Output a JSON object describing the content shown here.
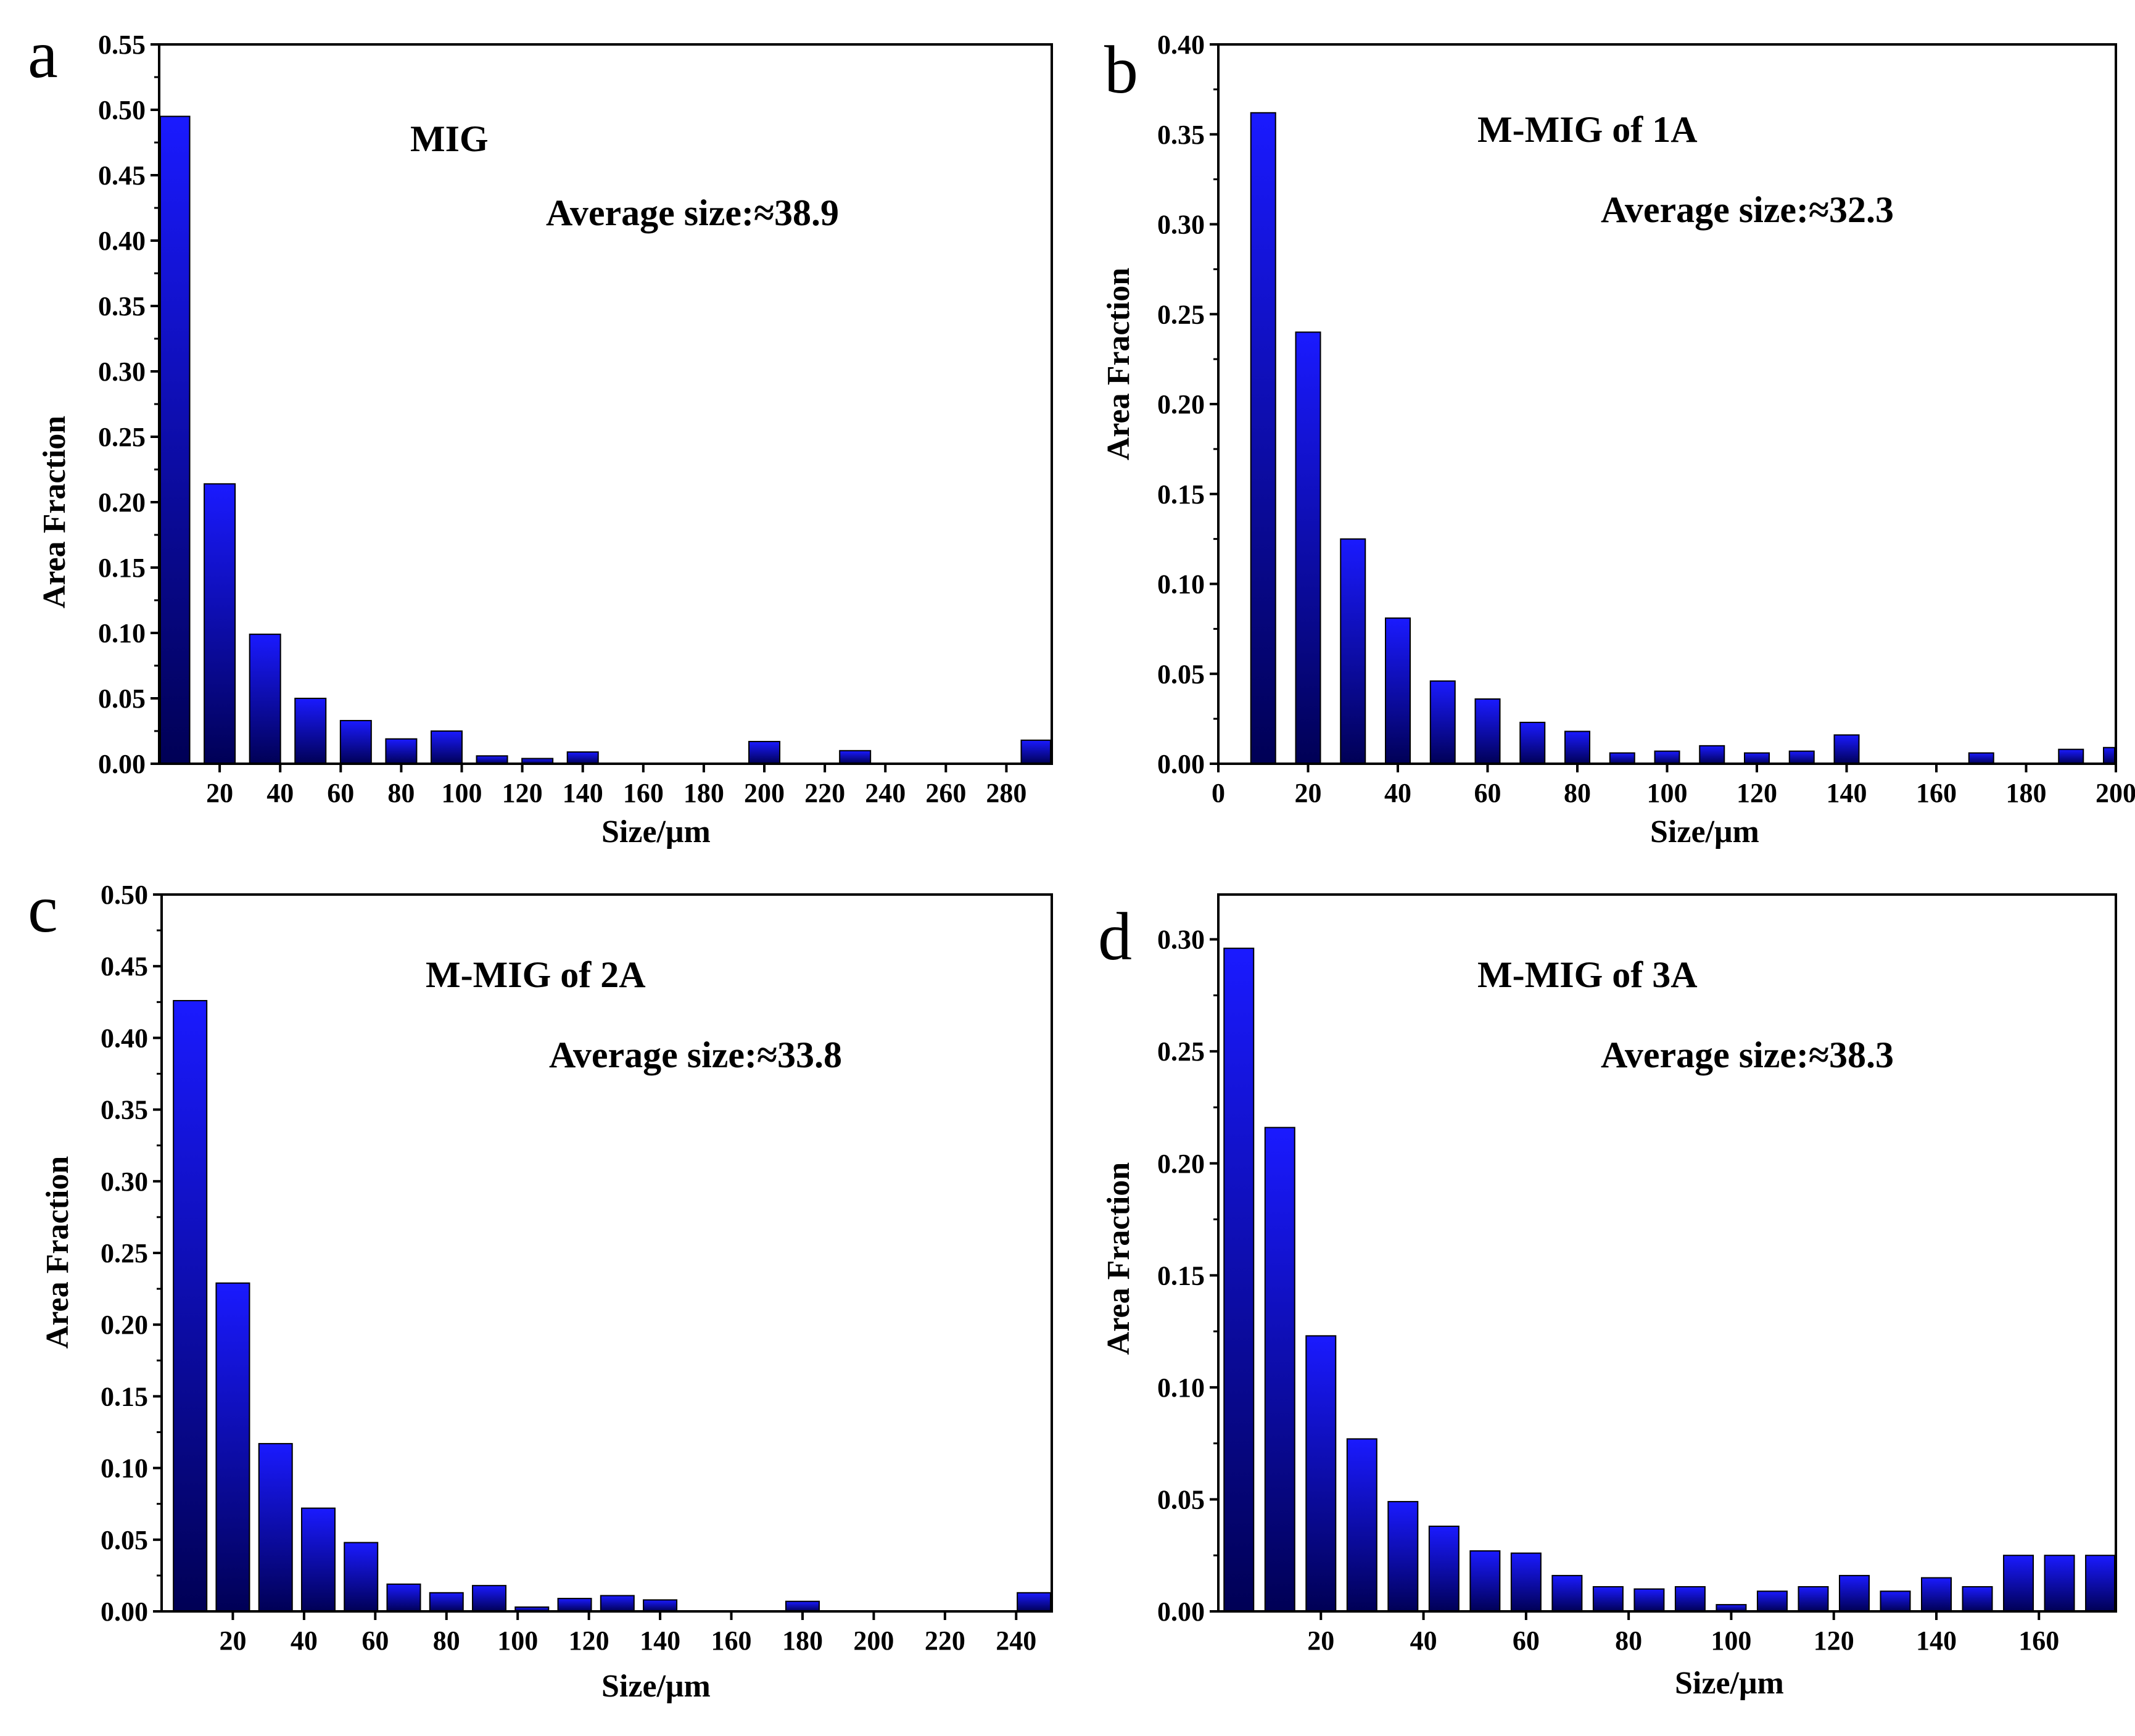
{
  "colors": {
    "bar_top": "#1a1aff",
    "bar_bottom": "#000055",
    "bar_outline": "#000000",
    "axis": "#000000"
  },
  "chart_data": [
    {
      "type": "bar",
      "panel": "a",
      "annotation": "MIG",
      "average": "Average size:≈38.9",
      "xlabel": "Size/μm",
      "ylabel": "Area Fraction",
      "xlim": [
        0,
        295
      ],
      "ylim": [
        0,
        0.55
      ],
      "xticks": [
        "20",
        "40",
        "60",
        "80",
        "100",
        "120",
        "140",
        "160",
        "180",
        "200",
        "220",
        "240",
        "260",
        "280"
      ],
      "yticks": [
        "0.00",
        "0.05",
        "0.10",
        "0.15",
        "0.20",
        "0.25",
        "0.30",
        "0.35",
        "0.40",
        "0.45",
        "0.50",
        "0.55"
      ],
      "x": [
        5,
        20,
        35,
        50,
        65,
        80,
        95,
        110,
        125,
        140,
        200,
        230,
        290
      ],
      "values": [
        0.495,
        0.214,
        0.099,
        0.05,
        0.033,
        0.019,
        0.025,
        0.006,
        0.004,
        0.009,
        0.017,
        0.01,
        0.018
      ]
    },
    {
      "type": "bar",
      "panel": "b",
      "annotation": "M-MIG of 1A",
      "average": "Average size:≈32.3",
      "xlabel": "Size/μm",
      "ylabel": "Area Fraction",
      "xlim": [
        0,
        200
      ],
      "ylim": [
        0,
        0.4
      ],
      "xticks": [
        "0",
        "20",
        "40",
        "60",
        "80",
        "100",
        "120",
        "140",
        "160",
        "180",
        "200"
      ],
      "yticks": [
        "0.00",
        "0.05",
        "0.10",
        "0.15",
        "0.20",
        "0.25",
        "0.30",
        "0.35",
        "0.40"
      ],
      "x": [
        10,
        20,
        30,
        40,
        50,
        60,
        70,
        80,
        90,
        100,
        110,
        120,
        130,
        140,
        170,
        190,
        200
      ],
      "values": [
        0.362,
        0.24,
        0.125,
        0.081,
        0.046,
        0.036,
        0.023,
        0.018,
        0.006,
        0.007,
        0.01,
        0.006,
        0.007,
        0.016,
        0.006,
        0.008,
        0.009
      ]
    },
    {
      "type": "bar",
      "panel": "c",
      "annotation": "M-MIG of 2A",
      "average": "Average size:≈33.8",
      "xlabel": "Size/μm",
      "ylabel": "Area Fraction",
      "xlim": [
        0,
        250
      ],
      "ylim": [
        0,
        0.5
      ],
      "xticks": [
        "20",
        "40",
        "60",
        "80",
        "100",
        "120",
        "140",
        "160",
        "180",
        "200",
        "220",
        "240"
      ],
      "yticks": [
        "0.00",
        "0.05",
        "0.10",
        "0.15",
        "0.20",
        "0.25",
        "0.30",
        "0.35",
        "0.40",
        "0.45",
        "0.50"
      ],
      "x": [
        8,
        20,
        32,
        44,
        56,
        68,
        80,
        92,
        104,
        116,
        128,
        140,
        180,
        245
      ],
      "values": [
        0.426,
        0.229,
        0.117,
        0.072,
        0.048,
        0.019,
        0.013,
        0.018,
        0.003,
        0.009,
        0.011,
        0.008,
        0.007,
        0.013
      ]
    },
    {
      "type": "bar",
      "panel": "d",
      "annotation": "M-MIG of 3A",
      "average": "Average size:≈38.3",
      "xlabel": "Size/μm",
      "ylabel": "Area Fraction",
      "xlim": [
        0,
        175
      ],
      "ylim": [
        0,
        0.32
      ],
      "xticks": [
        "20",
        "40",
        "60",
        "80",
        "100",
        "120",
        "140",
        "160"
      ],
      "yticks": [
        "0.00",
        "0.05",
        "0.10",
        "0.15",
        "0.20",
        "0.25",
        "0.30"
      ],
      "x": [
        4,
        12,
        20,
        28,
        36,
        44,
        52,
        60,
        68,
        76,
        84,
        92,
        100,
        108,
        116,
        124,
        132,
        140,
        148,
        156,
        164,
        172
      ],
      "values": [
        0.296,
        0.216,
        0.123,
        0.077,
        0.049,
        0.038,
        0.027,
        0.026,
        0.016,
        0.011,
        0.01,
        0.011,
        0.003,
        0.009,
        0.011,
        0.016,
        0.009,
        0.015,
        0.011,
        0.025,
        0.025,
        0.025
      ]
    }
  ]
}
